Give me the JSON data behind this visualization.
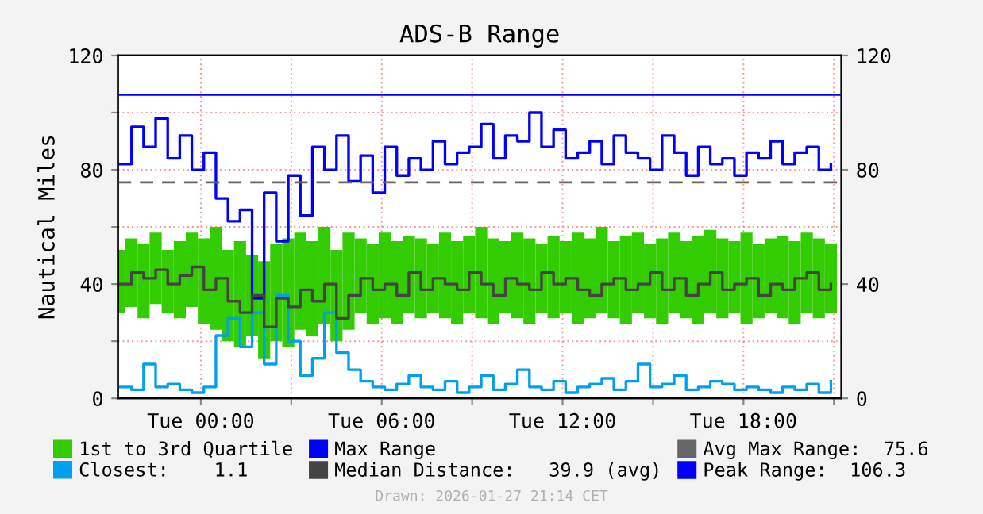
{
  "chart_data": {
    "type": "step",
    "title": "ADS-B Range",
    "ylabel": "Nautical Miles",
    "x": [
      "2026-01-26T21:18",
      "2026-01-26T21:42",
      "2026-01-26T22:06",
      "2026-01-26T22:30",
      "2026-01-26T22:54",
      "2026-01-26T23:18",
      "2026-01-26T23:42",
      "2026-01-27T00:06",
      "2026-01-27T00:30",
      "2026-01-27T00:54",
      "2026-01-27T01:18",
      "2026-01-27T01:42",
      "2026-01-27T02:06",
      "2026-01-27T02:30",
      "2026-01-27T02:54",
      "2026-01-27T03:18",
      "2026-01-27T03:42",
      "2026-01-27T04:06",
      "2026-01-27T04:30",
      "2026-01-27T04:54",
      "2026-01-27T05:18",
      "2026-01-27T05:42",
      "2026-01-27T06:06",
      "2026-01-27T06:30",
      "2026-01-27T06:54",
      "2026-01-27T07:18",
      "2026-01-27T07:42",
      "2026-01-27T08:06",
      "2026-01-27T08:30",
      "2026-01-27T08:54",
      "2026-01-27T09:18",
      "2026-01-27T09:42",
      "2026-01-27T10:06",
      "2026-01-27T10:30",
      "2026-01-27T10:54",
      "2026-01-27T11:18",
      "2026-01-27T11:42",
      "2026-01-27T12:06",
      "2026-01-27T12:30",
      "2026-01-27T12:54",
      "2026-01-27T13:18",
      "2026-01-27T13:42",
      "2026-01-27T14:06",
      "2026-01-27T14:30",
      "2026-01-27T14:54",
      "2026-01-27T15:18",
      "2026-01-27T15:42",
      "2026-01-27T16:06",
      "2026-01-27T16:30",
      "2026-01-27T16:54",
      "2026-01-27T17:18",
      "2026-01-27T17:42",
      "2026-01-27T18:06",
      "2026-01-27T18:30",
      "2026-01-27T18:54",
      "2026-01-27T19:18",
      "2026-01-27T19:42",
      "2026-01-27T20:06",
      "2026-01-27T20:30",
      "2026-01-27T20:54"
    ],
    "xlim": [
      "2026-01-26T21:15",
      "2026-01-27T21:15"
    ],
    "xticks": [
      {
        "value": "2026-01-27T00:00",
        "label": "Tue 00:00"
      },
      {
        "value": "2026-01-27T03:00",
        "label": null
      },
      {
        "value": "2026-01-27T06:00",
        "label": "Tue 06:00"
      },
      {
        "value": "2026-01-27T09:00",
        "label": null
      },
      {
        "value": "2026-01-27T12:00",
        "label": "Tue 12:00"
      },
      {
        "value": "2026-01-27T15:00",
        "label": null
      },
      {
        "value": "2026-01-27T18:00",
        "label": "Tue 18:00"
      },
      {
        "value": "2026-01-27T21:00",
        "label": null
      }
    ],
    "ylim": [
      0,
      120
    ],
    "yticks": [
      0,
      {
        "value": 20,
        "label": null
      },
      40,
      {
        "value": 60,
        "label": null
      },
      80,
      {
        "value": 100,
        "label": null
      },
      120
    ],
    "y2lim": [
      0,
      120
    ],
    "y2ticks": [
      0,
      40,
      80,
      120
    ],
    "grid": true,
    "legend": "bottom",
    "series": [
      {
        "name": "1st to 3rd Quartile",
        "type": "bar",
        "color": "#33cc00",
        "base": [
          30,
          32,
          28,
          33,
          30,
          28,
          32,
          26,
          24,
          20,
          18,
          22,
          14,
          20,
          18,
          24,
          22,
          26,
          20,
          24,
          30,
          26,
          28,
          26,
          30,
          28,
          30,
          28,
          26,
          30,
          28,
          26,
          30,
          28,
          26,
          30,
          28,
          30,
          26,
          28,
          30,
          28,
          26,
          30,
          28,
          26,
          30,
          28,
          26,
          30,
          28,
          30,
          26,
          28,
          30,
          28,
          26,
          30,
          28,
          30
        ],
        "values": [
          22,
          24,
          26,
          25,
          22,
          27,
          26,
          30,
          36,
          32,
          37,
          28,
          34,
          34,
          38,
          34,
          33,
          34,
          32,
          34,
          26,
          28,
          30,
          29,
          27,
          28,
          24,
          30,
          29,
          27,
          32,
          30,
          25,
          30,
          30,
          24,
          29,
          25,
          32,
          28,
          30,
          27,
          31,
          28,
          26,
          30,
          28,
          27,
          31,
          29,
          28,
          25,
          32,
          26,
          26,
          29,
          29,
          28,
          28,
          24
        ]
      },
      {
        "name": "Closest:    1.1",
        "color": "#00a0ee",
        "values": [
          4,
          3,
          12,
          4,
          5,
          3,
          2,
          4,
          22,
          28,
          18,
          30,
          12,
          36,
          20,
          8,
          14,
          30,
          16,
          10,
          6,
          4,
          3,
          5,
          8,
          4,
          3,
          6,
          2,
          4,
          8,
          3,
          5,
          10,
          4,
          3,
          6,
          2,
          4,
          5,
          7,
          3,
          6,
          12,
          4,
          5,
          8,
          3,
          4,
          6,
          5,
          3,
          4,
          3,
          2,
          4,
          3,
          5,
          2,
          6
        ]
      },
      {
        "name": "Max Range",
        "color": "#0000ff",
        "values": [
          82,
          95,
          88,
          98,
          84,
          92,
          80,
          86,
          70,
          62,
          66,
          35,
          72,
          55,
          78,
          64,
          88,
          80,
          92,
          76,
          85,
          72,
          88,
          78,
          84,
          80,
          90,
          82,
          86,
          88,
          96,
          84,
          92,
          90,
          100,
          88,
          94,
          84,
          86,
          90,
          82,
          92,
          86,
          84,
          80,
          92,
          86,
          78,
          88,
          82,
          84,
          78,
          86,
          84,
          90,
          82,
          86,
          88,
          80,
          82
        ]
      },
      {
        "name": "Median Distance:   39.9 (avg)",
        "color": "#444444",
        "values": [
          40,
          44,
          42,
          45,
          40,
          43,
          46,
          38,
          42,
          34,
          30,
          36,
          25,
          35,
          32,
          38,
          34,
          40,
          28,
          36,
          42,
          38,
          40,
          36,
          44,
          38,
          42,
          40,
          38,
          44,
          40,
          36,
          42,
          40,
          38,
          44,
          40,
          42,
          38,
          36,
          40,
          42,
          38,
          40,
          44,
          38,
          42,
          36,
          40,
          44,
          38,
          40,
          42,
          36,
          40,
          38,
          42,
          44,
          38,
          40
        ]
      }
    ],
    "ref_lines": [
      {
        "axis": "y",
        "value": 75.6,
        "label": "Avg Max Range:  75.6",
        "color": "#666666",
        "line_style": "dashed"
      },
      {
        "axis": "y",
        "value": 106.3,
        "label": "Peak Range:  106.3",
        "color": "#0000ff",
        "line_style": "solid"
      }
    ],
    "annotations": [
      "Drawn: 2026-01-27 21:14 CET"
    ]
  }
}
